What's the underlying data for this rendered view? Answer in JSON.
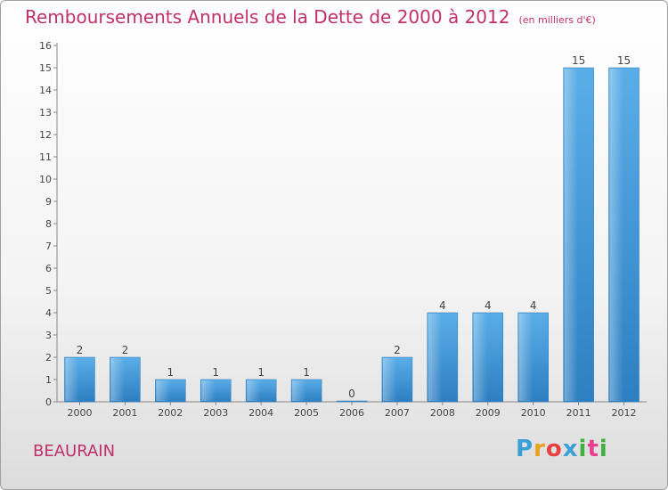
{
  "header": {
    "title": "Remboursements Annuels de la Dette de 2000 à 2012",
    "unit": "(en milliers d'€)"
  },
  "footer": {
    "commune": "BEAURAIN",
    "logo_letters": [
      "P",
      "r",
      "o",
      "x",
      "i",
      "t",
      "i"
    ],
    "logo_colors": [
      "#3aa0d8",
      "#e8a020",
      "#e84040",
      "#3aa0d8",
      "#40b040",
      "#e84090",
      "#40b040"
    ]
  },
  "chart_data": {
    "type": "bar",
    "title": "Remboursements Annuels de la Dette de 2000 à 2012",
    "categories": [
      "2000",
      "2001",
      "2002",
      "2003",
      "2004",
      "2005",
      "2006",
      "2007",
      "2008",
      "2009",
      "2010",
      "2011",
      "2012"
    ],
    "values": [
      2,
      2,
      1,
      1,
      1,
      1,
      0,
      2,
      4,
      4,
      4,
      15,
      15
    ],
    "data_labels": [
      "2",
      "2",
      "1",
      "1",
      "1",
      "1",
      "0",
      "2",
      "4",
      "4",
      "4",
      "15",
      "15"
    ],
    "y_ticks": [
      "0",
      "1",
      "2",
      "3",
      "4",
      "5",
      "6",
      "7",
      "8",
      "9",
      "10",
      "11",
      "12",
      "13",
      "14",
      "15",
      "16"
    ],
    "ylim": [
      0,
      16
    ],
    "bar_color": "#3a93d8",
    "grid": false,
    "xlabel": "",
    "ylabel": ""
  }
}
